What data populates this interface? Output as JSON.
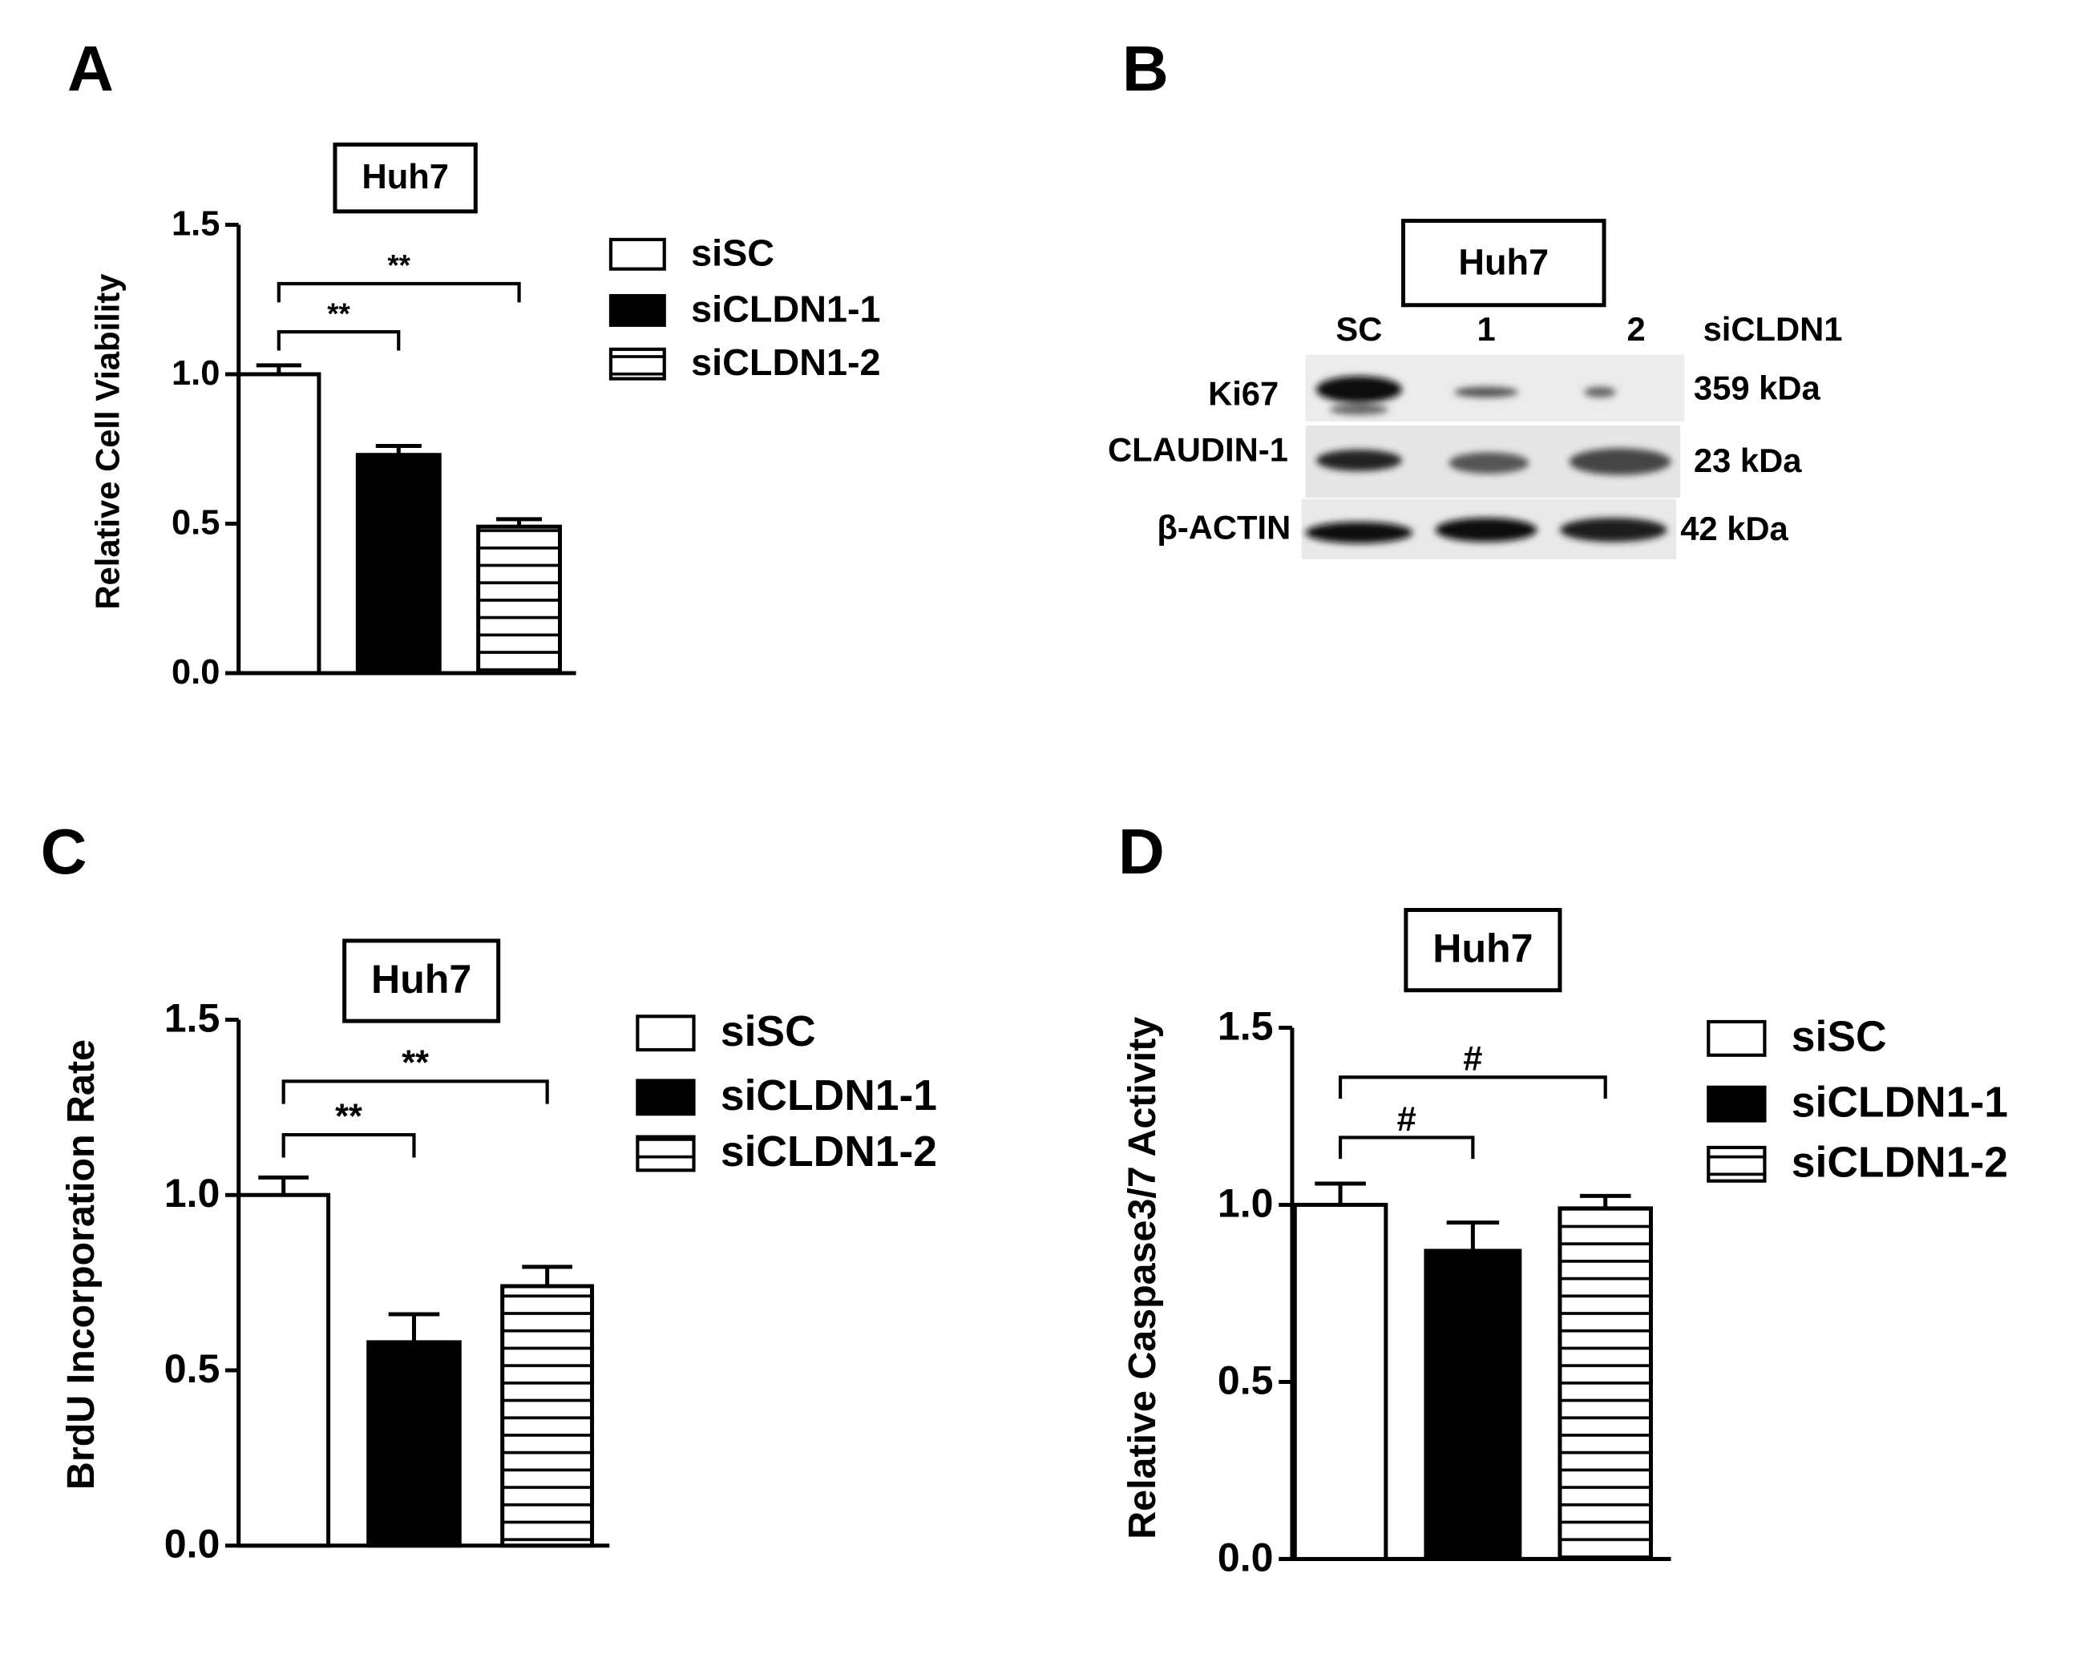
{
  "chart_data": [
    {
      "type": "bar",
      "panel": "A",
      "title": "Huh7",
      "y_label": "Relative Cell Viability",
      "ylim": [
        0,
        1.5
      ],
      "yticks": [
        {
          "value": 0,
          "label": "0.0"
        },
        {
          "value": 0.5,
          "label": "0.5"
        },
        {
          "value": 1,
          "label": "1.0"
        },
        {
          "value": 1.5,
          "label": "1.5"
        }
      ],
      "series": [
        {
          "name": "siSC",
          "color": "#ffffff",
          "values": [
            1.0
          ],
          "errors": [
            0.03
          ]
        },
        {
          "name": "siCLDN1-1",
          "color": "#000000",
          "values": [
            0.73
          ],
          "errors": [
            0.03
          ]
        },
        {
          "name": "siCLDN1-2",
          "color": "#ffffff",
          "hatch": "horizontal",
          "values": [
            0.49
          ],
          "errors": [
            0.025
          ]
        }
      ],
      "annotations": [
        "**",
        "**"
      ]
    },
    {
      "type": "bar",
      "panel": "C",
      "title": "Huh7",
      "y_label": "BrdU Incorporation Rate",
      "ylim": [
        0,
        1.5
      ],
      "yticks": [
        {
          "value": 0,
          "label": "0.0"
        },
        {
          "value": 0.5,
          "label": "0.5"
        },
        {
          "value": 1,
          "label": "1.0"
        },
        {
          "value": 1.5,
          "label": "1.5"
        }
      ],
      "series": [
        {
          "name": "siSC",
          "color": "#ffffff",
          "values": [
            1.0
          ],
          "errors": [
            0.05
          ]
        },
        {
          "name": "siCLDN1-1",
          "color": "#000000",
          "values": [
            0.58
          ],
          "errors": [
            0.08
          ]
        },
        {
          "name": "siCLDN1-2",
          "color": "#ffffff",
          "hatch": "horizontal",
          "values": [
            0.74
          ],
          "errors": [
            0.055
          ]
        }
      ],
      "annotations": [
        "**",
        "**"
      ]
    },
    {
      "type": "bar",
      "panel": "D",
      "title": "Huh7",
      "y_label": "Relative Caspase3/7 Activity",
      "ylim": [
        0,
        1.5
      ],
      "yticks": [
        {
          "value": 0,
          "label": "0.0"
        },
        {
          "value": 0.5,
          "label": "0.5"
        },
        {
          "value": 1,
          "label": "1.0"
        },
        {
          "value": 1.5,
          "label": "1.5"
        }
      ],
      "series": [
        {
          "name": "siSC",
          "color": "#ffffff",
          "values": [
            1.0
          ],
          "errors": [
            0.06
          ]
        },
        {
          "name": "siCLDN1-1",
          "color": "#000000",
          "values": [
            0.87
          ],
          "errors": [
            0.08
          ]
        },
        {
          "name": "siCLDN1-2",
          "color": "#ffffff",
          "hatch": "horizontal",
          "values": [
            0.99
          ],
          "errors": [
            0.035
          ]
        }
      ],
      "annotations": [
        "#",
        "#"
      ]
    }
  ],
  "blot": {
    "panel": "B",
    "title": "Huh7",
    "lanes": [
      "SC",
      "1",
      "2"
    ],
    "lane_group": "siCLDN1",
    "proteins": [
      "Ki67",
      "CLAUDIN-1",
      "β-ACTIN"
    ],
    "sizes": [
      "359 kDa",
      "23 kDa",
      "42 kDa"
    ]
  }
}
